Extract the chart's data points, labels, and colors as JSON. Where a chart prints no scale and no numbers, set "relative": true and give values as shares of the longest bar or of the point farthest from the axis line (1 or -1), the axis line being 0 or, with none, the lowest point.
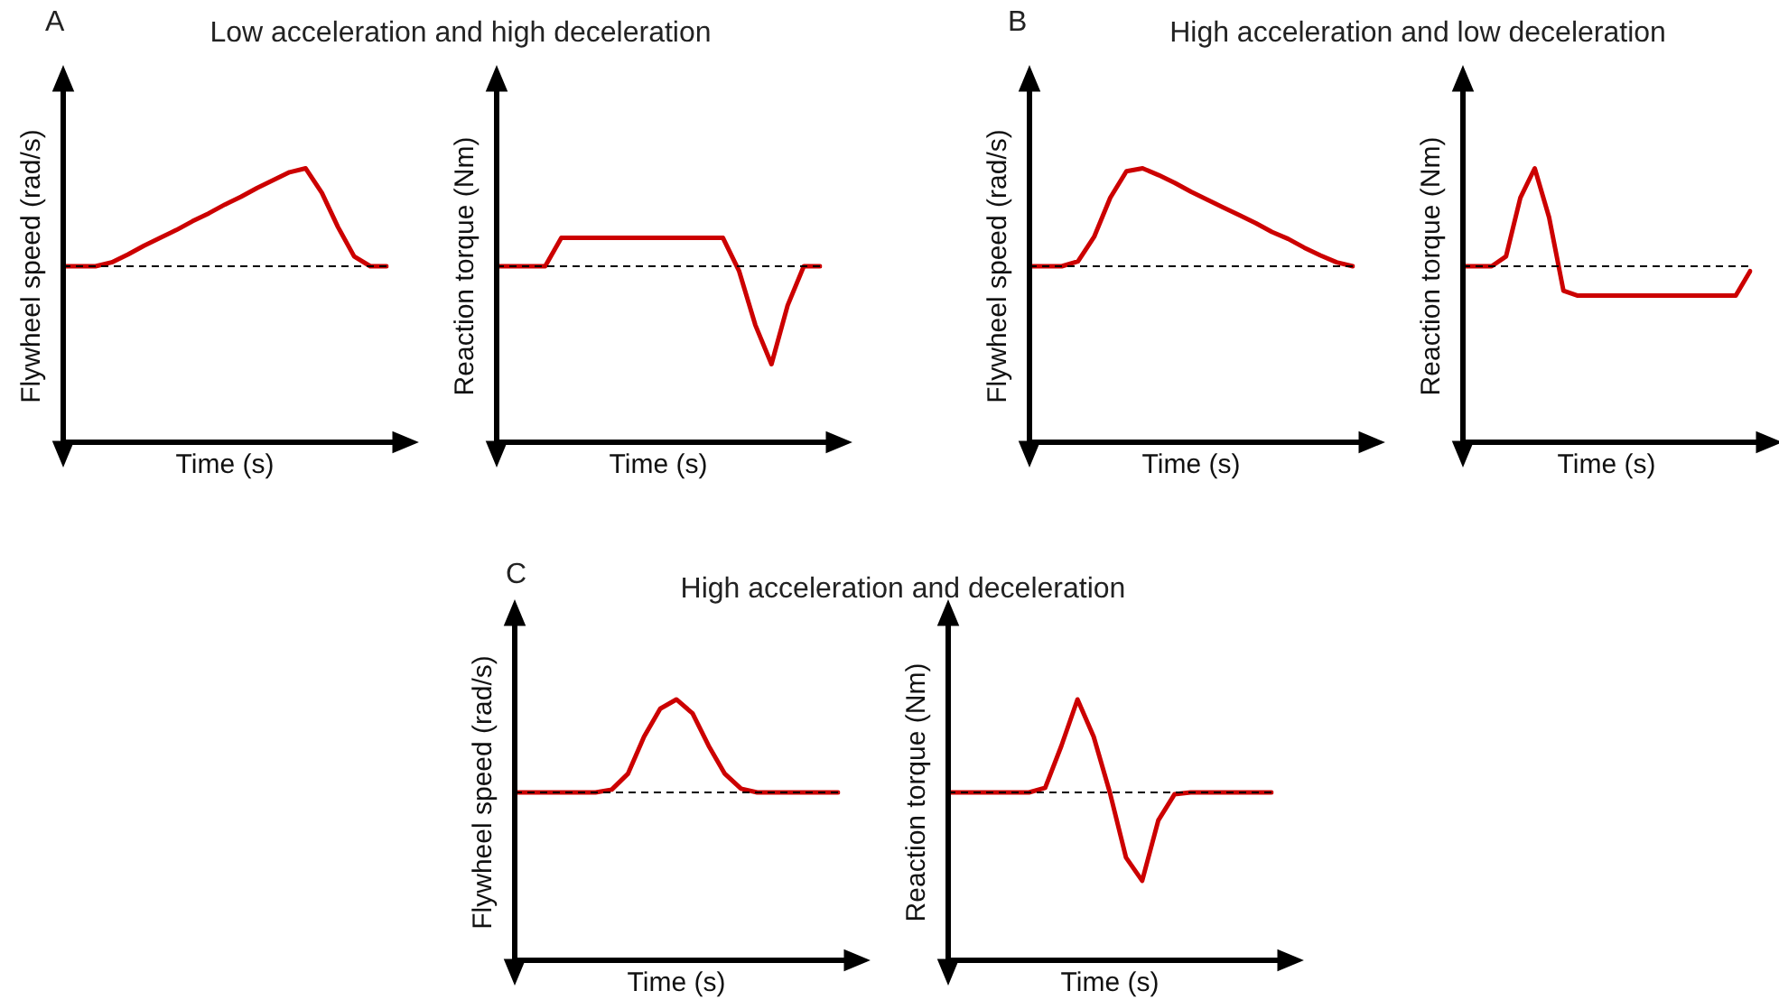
{
  "chart_data": [
    {
      "type": "line",
      "title": "Low acceleration and high deceleration",
      "annotations": [
        "A"
      ],
      "xlabel": "Time (s)",
      "ylabel": "Flywheel speed (rad/s)",
      "relative": true,
      "tick_labels": false,
      "marker": "none",
      "categories": [
        null,
        null,
        null,
        null,
        null,
        null,
        null,
        null,
        null,
        null,
        null,
        null,
        null,
        null,
        null,
        null,
        null,
        null,
        null,
        null,
        null
      ],
      "series": [
        {
          "color": "#cc0000",
          "values": [
            0,
            0,
            0,
            0.04,
            0.12,
            0.21,
            0.29,
            0.37,
            0.46,
            0.54,
            0.63,
            0.71,
            0.8,
            0.88,
            0.96,
            1,
            0.75,
            0.4,
            0.1,
            0,
            0
          ]
        }
      ],
      "ref_lines": [
        {
          "axis": "y",
          "value": 0,
          "color": "#000000",
          "line_style": "dashed"
        }
      ]
    },
    {
      "type": "line",
      "xlabel": "Time (s)",
      "ylabel": "Reaction torque (Nm)",
      "relative": true,
      "tick_labels": false,
      "marker": "none",
      "categories": [
        null,
        null,
        null,
        null,
        null,
        null,
        null,
        null,
        null,
        null,
        null,
        null,
        null,
        null,
        null,
        null,
        null,
        null,
        null,
        null,
        null
      ],
      "series": [
        {
          "color": "#cc0000",
          "values": [
            0,
            0,
            0,
            0,
            0.29,
            0.29,
            0.29,
            0.29,
            0.29,
            0.29,
            0.29,
            0.29,
            0.29,
            0.29,
            0.29,
            -0.05,
            -0.6,
            -1,
            -0.4,
            0,
            0
          ]
        }
      ],
      "ref_lines": [
        {
          "axis": "y",
          "value": 0,
          "color": "#000000",
          "line_style": "dashed"
        }
      ]
    },
    {
      "type": "line",
      "title": "High acceleration and low deceleration",
      "annotations": [
        "B"
      ],
      "xlabel": "Time (s)",
      "ylabel": "Flywheel speed (rad/s)",
      "relative": true,
      "tick_labels": false,
      "marker": "none",
      "categories": [
        null,
        null,
        null,
        null,
        null,
        null,
        null,
        null,
        null,
        null,
        null,
        null,
        null,
        null,
        null,
        null,
        null,
        null,
        null,
        null,
        null
      ],
      "series": [
        {
          "color": "#cc0000",
          "values": [
            0,
            0,
            0,
            0.05,
            0.3,
            0.7,
            0.97,
            1,
            0.93,
            0.85,
            0.76,
            0.68,
            0.6,
            0.52,
            0.44,
            0.35,
            0.28,
            0.19,
            0.11,
            0.04,
            0
          ]
        }
      ],
      "ref_lines": [
        {
          "axis": "y",
          "value": 0,
          "color": "#000000",
          "line_style": "dashed"
        }
      ]
    },
    {
      "type": "line",
      "xlabel": "Time (s)",
      "ylabel": "Reaction torque (Nm)",
      "relative": true,
      "tick_labels": false,
      "marker": "none",
      "categories": [
        null,
        null,
        null,
        null,
        null,
        null,
        null,
        null,
        null,
        null,
        null,
        null,
        null,
        null,
        null,
        null,
        null,
        null,
        null,
        null,
        null
      ],
      "series": [
        {
          "color": "#cc0000",
          "values": [
            0,
            0,
            0,
            0.1,
            0.7,
            1,
            0.5,
            -0.25,
            -0.3,
            -0.3,
            -0.3,
            -0.3,
            -0.3,
            -0.3,
            -0.3,
            -0.3,
            -0.3,
            -0.3,
            -0.3,
            -0.3,
            -0.05
          ]
        }
      ],
      "ref_lines": [
        {
          "axis": "y",
          "value": 0,
          "color": "#000000",
          "line_style": "dashed"
        }
      ]
    },
    {
      "type": "line",
      "title": "High acceleration and deceleration",
      "annotations": [
        "C"
      ],
      "xlabel": "Time (s)",
      "ylabel": "Flywheel speed (rad/s)",
      "relative": true,
      "tick_labels": false,
      "marker": "none",
      "categories": [
        null,
        null,
        null,
        null,
        null,
        null,
        null,
        null,
        null,
        null,
        null,
        null,
        null,
        null,
        null,
        null,
        null,
        null,
        null,
        null,
        null
      ],
      "series": [
        {
          "color": "#cc0000",
          "values": [
            0,
            0,
            0,
            0,
            0,
            0,
            0.03,
            0.2,
            0.6,
            0.9,
            1,
            0.85,
            0.5,
            0.2,
            0.04,
            0,
            0,
            0,
            0,
            0,
            0
          ]
        }
      ],
      "ref_lines": [
        {
          "axis": "y",
          "value": 0,
          "color": "#000000",
          "line_style": "dashed"
        }
      ]
    },
    {
      "type": "line",
      "xlabel": "Time (s)",
      "ylabel": "Reaction torque (Nm)",
      "relative": true,
      "tick_labels": false,
      "marker": "none",
      "categories": [
        null,
        null,
        null,
        null,
        null,
        null,
        null,
        null,
        null,
        null,
        null,
        null,
        null,
        null,
        null,
        null,
        null,
        null,
        null,
        null,
        null
      ],
      "series": [
        {
          "color": "#cc0000",
          "values": [
            0,
            0,
            0,
            0,
            0,
            0,
            0.05,
            0.5,
            1,
            0.6,
            0,
            -0.7,
            -0.95,
            -0.3,
            -0.02,
            0,
            0,
            0,
            0,
            0,
            0
          ]
        }
      ],
      "ref_lines": [
        {
          "axis": "y",
          "value": 0,
          "color": "#000000",
          "line_style": "dashed"
        }
      ]
    }
  ]
}
